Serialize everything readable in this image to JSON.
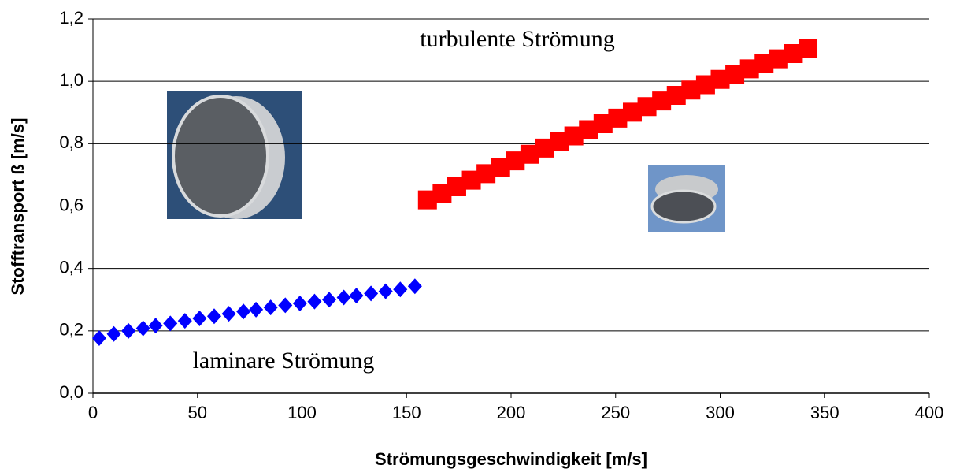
{
  "chart_data": {
    "type": "scatter",
    "xlabel": "Strömungsgeschwindigkeit [m/s]",
    "ylabel": "Stofftransport ß [m/s]",
    "xlim": [
      0,
      400
    ],
    "xticks": [
      0,
      50,
      100,
      150,
      200,
      250,
      300,
      350,
      400
    ],
    "ylim": [
      0,
      1.2
    ],
    "yticks": [
      {
        "value": 0,
        "label": "0,0"
      },
      {
        "value": 0.2,
        "label": "0,2"
      },
      {
        "value": 0.4,
        "label": "0,4"
      },
      {
        "value": 0.6,
        "label": "0,6"
      },
      {
        "value": 0.8,
        "label": "0,8"
      },
      {
        "value": 1.0,
        "label": "1,0"
      },
      {
        "value": 1.2,
        "label": "1,2"
      }
    ],
    "grid": true,
    "series": [
      {
        "color": "#0000ff",
        "marker": "diamond",
        "x": [
          3,
          10,
          17,
          24,
          30,
          37,
          44,
          51,
          58,
          65,
          72,
          78,
          85,
          92,
          99,
          106,
          113,
          120,
          126,
          133,
          140,
          147,
          154
        ],
        "values": [
          0.177,
          0.19,
          0.2,
          0.208,
          0.217,
          0.224,
          0.232,
          0.24,
          0.247,
          0.255,
          0.262,
          0.268,
          0.275,
          0.282,
          0.288,
          0.294,
          0.3,
          0.307,
          0.313,
          0.32,
          0.327,
          0.333,
          0.343
        ]
      },
      {
        "color": "#ff0000",
        "marker": "square",
        "x": [
          160,
          167,
          174,
          181,
          188,
          195,
          202,
          209,
          216,
          223,
          230,
          237,
          244,
          251,
          258,
          265,
          272,
          279,
          286,
          293,
          300,
          307,
          314,
          321,
          328,
          335,
          342
        ],
        "values": [
          0.62,
          0.641,
          0.662,
          0.683,
          0.704,
          0.725,
          0.745,
          0.766,
          0.786,
          0.806,
          0.825,
          0.845,
          0.864,
          0.882,
          0.901,
          0.919,
          0.937,
          0.955,
          0.972,
          0.989,
          1.006,
          1.023,
          1.04,
          1.056,
          1.072,
          1.089,
          1.105
        ]
      }
    ],
    "annotations": [
      {
        "text": "turbulente Strömung"
      },
      {
        "text": "laminare Strömung"
      }
    ]
  }
}
